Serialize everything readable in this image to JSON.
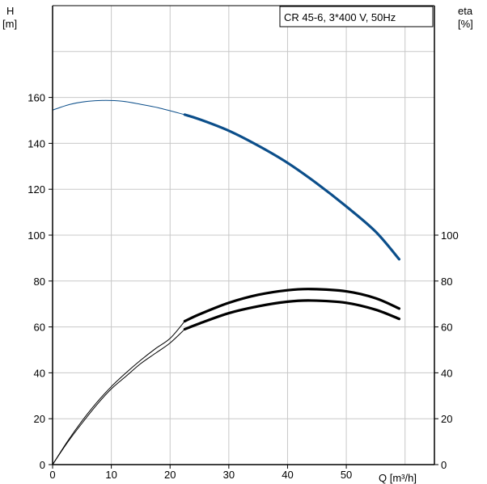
{
  "chart_data": {
    "type": "line",
    "title": "CR 45-6, 3*400 V, 50Hz",
    "x_label": "Q [m³/h]",
    "y_label_left": {
      "name": "H",
      "unit": "[m]"
    },
    "y_label_right": {
      "name": "eta",
      "unit": "[%]"
    },
    "x_ticks": [
      "0",
      "10",
      "20",
      "30",
      "40",
      "50"
    ],
    "x_tick_values": [
      0,
      10,
      20,
      30,
      40,
      50
    ],
    "y_left_ticks": [
      "0",
      "20",
      "40",
      "60",
      "80",
      "100",
      "120",
      "140",
      "160"
    ],
    "y_left_tick_values": [
      0,
      20,
      40,
      60,
      80,
      100,
      120,
      140,
      160
    ],
    "y_right_ticks": [
      "0",
      "20",
      "40",
      "60",
      "80",
      "100"
    ],
    "y_right_tick_values": [
      0,
      20,
      40,
      60,
      80,
      100
    ],
    "xlim": [
      0,
      65
    ],
    "ylim_left": [
      0,
      200
    ],
    "ylim_right": [
      0,
      200
    ],
    "grid": true,
    "legend_position": "top-right",
    "colors": {
      "head": "#0b4e8a",
      "efficiency": "#000000",
      "grid": "#c8c8c8"
    },
    "series": [
      {
        "axis": "left",
        "color": "#0b4e8a",
        "operating_range": [
          22.5,
          59
        ],
        "x": [
          0,
          3,
          6,
          9,
          12,
          15,
          18,
          22.5,
          25,
          30,
          35,
          40,
          45,
          50,
          55,
          59
        ],
        "y": [
          154.5,
          157,
          158.3,
          158.7,
          158.3,
          157,
          155.5,
          152.5,
          150.5,
          145.5,
          139,
          131.5,
          122.5,
          112.5,
          101.5,
          89.5
        ]
      },
      {
        "axis": "right",
        "color": "#000000",
        "operating_range": [
          22.5,
          59
        ],
        "x": [
          0,
          2.5,
          5,
          7.5,
          10,
          12.5,
          15,
          17.5,
          20,
          22.5,
          25,
          30,
          35,
          40,
          44,
          50,
          55,
          59
        ],
        "y": [
          0,
          10,
          19,
          27,
          34,
          40,
          45.5,
          50.5,
          55,
          62.5,
          65.5,
          70.5,
          74,
          76,
          76.5,
          75.5,
          72.5,
          68
        ]
      },
      {
        "axis": "right",
        "color": "#000000",
        "operating_range": [
          22.5,
          59
        ],
        "x": [
          0,
          2.5,
          5,
          7.5,
          10,
          12.5,
          15,
          17.5,
          20,
          22.5,
          25,
          30,
          35,
          40,
          44,
          50,
          55,
          59
        ],
        "y": [
          0,
          9.5,
          18,
          26,
          33,
          38.5,
          44,
          48.5,
          53,
          59,
          61.5,
          66,
          69,
          71,
          71.5,
          70.5,
          67.5,
          63.5
        ]
      }
    ]
  }
}
